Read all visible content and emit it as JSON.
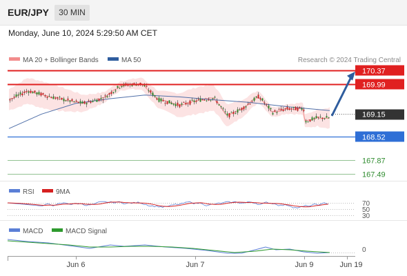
{
  "header": {
    "symbol": "EUR/JPY",
    "interval": "30 MIN"
  },
  "timestamp": "Monday, June 10, 2024 5:29:50 AM CET",
  "credit": "Research © 2024 Trading Central",
  "chart_data": [
    {
      "type": "candlestick",
      "legend": [
        {
          "label": "MA 20 + Bollinger Bands",
          "color": "#f28c8c"
        },
        {
          "label": "MA 50",
          "color": "#2f5d9e"
        }
      ],
      "x_ticks": [
        "Jun 6",
        "Jun 7",
        "Jun 9",
        "Jun 19"
      ],
      "ylim": [
        167.3,
        170.5
      ],
      "levels": [
        {
          "label": "170.37",
          "value": 170.37,
          "style": "resistance",
          "color": "#e02020"
        },
        {
          "label": "169.99",
          "value": 169.99,
          "style": "resistance",
          "color": "#e02020"
        },
        {
          "label": "169.15",
          "value": 169.15,
          "style": "last-price",
          "color": "#333333"
        },
        {
          "label": "168.52",
          "value": 168.52,
          "style": "support",
          "color": "#2f6fd6"
        },
        {
          "label": "167.87",
          "value": 167.87,
          "style": "support-minor",
          "color": "#2e8b2e"
        },
        {
          "label": "167.49",
          "value": 167.49,
          "style": "support-minor",
          "color": "#2e8b2e"
        }
      ],
      "forecast_target": 170.37
    },
    {
      "type": "line",
      "legend": [
        {
          "label": "RSI",
          "color": "#5b7fd6"
        },
        {
          "label": "9MA",
          "color": "#d62020"
        }
      ],
      "reference_lines": [
        {
          "label": "70",
          "value": 70
        },
        {
          "label": "50",
          "value": 50
        },
        {
          "label": "30",
          "value": 30
        }
      ]
    },
    {
      "type": "line",
      "legend": [
        {
          "label": "MACD",
          "color": "#5b7fd6"
        },
        {
          "label": "MACD Signal",
          "color": "#2e9a2e"
        }
      ],
      "reference_lines": [
        {
          "label": "0",
          "value": 0
        }
      ]
    }
  ]
}
